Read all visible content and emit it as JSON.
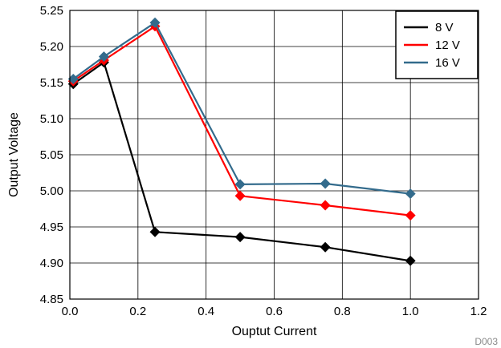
{
  "chart_data": {
    "type": "line",
    "title": "",
    "xlabel": "Ouptut Current",
    "ylabel": "Output Voltage",
    "xlim": [
      0,
      1.2
    ],
    "ylim": [
      4.85,
      5.25
    ],
    "xticks": [
      "0.0",
      "0.2",
      "0.4",
      "0.6",
      "0.8",
      "1.0",
      "1.2"
    ],
    "yticks": [
      "4.85",
      "4.90",
      "4.95",
      "5.00",
      "5.05",
      "5.10",
      "5.15",
      "5.20",
      "5.25"
    ],
    "grid": true,
    "legend_position": "top-right",
    "marker": "diamond",
    "series": [
      {
        "name": "8 V",
        "color": "#000000",
        "x": [
          0.01,
          0.1,
          0.25,
          0.5,
          0.75,
          1.0
        ],
        "y": [
          5.148,
          5.178,
          4.943,
          4.936,
          4.922,
          4.903
        ]
      },
      {
        "name": "12 V",
        "color": "#ff0000",
        "x": [
          0.01,
          0.1,
          0.25,
          0.5,
          0.75,
          1.0
        ],
        "y": [
          5.152,
          5.181,
          5.228,
          4.993,
          4.98,
          4.966
        ]
      },
      {
        "name": "16 V",
        "color": "#336b8c",
        "x": [
          0.01,
          0.1,
          0.25,
          0.5,
          0.75,
          1.0
        ],
        "y": [
          5.155,
          5.186,
          5.233,
          5.009,
          5.01,
          4.996
        ]
      }
    ],
    "code": "D003"
  }
}
